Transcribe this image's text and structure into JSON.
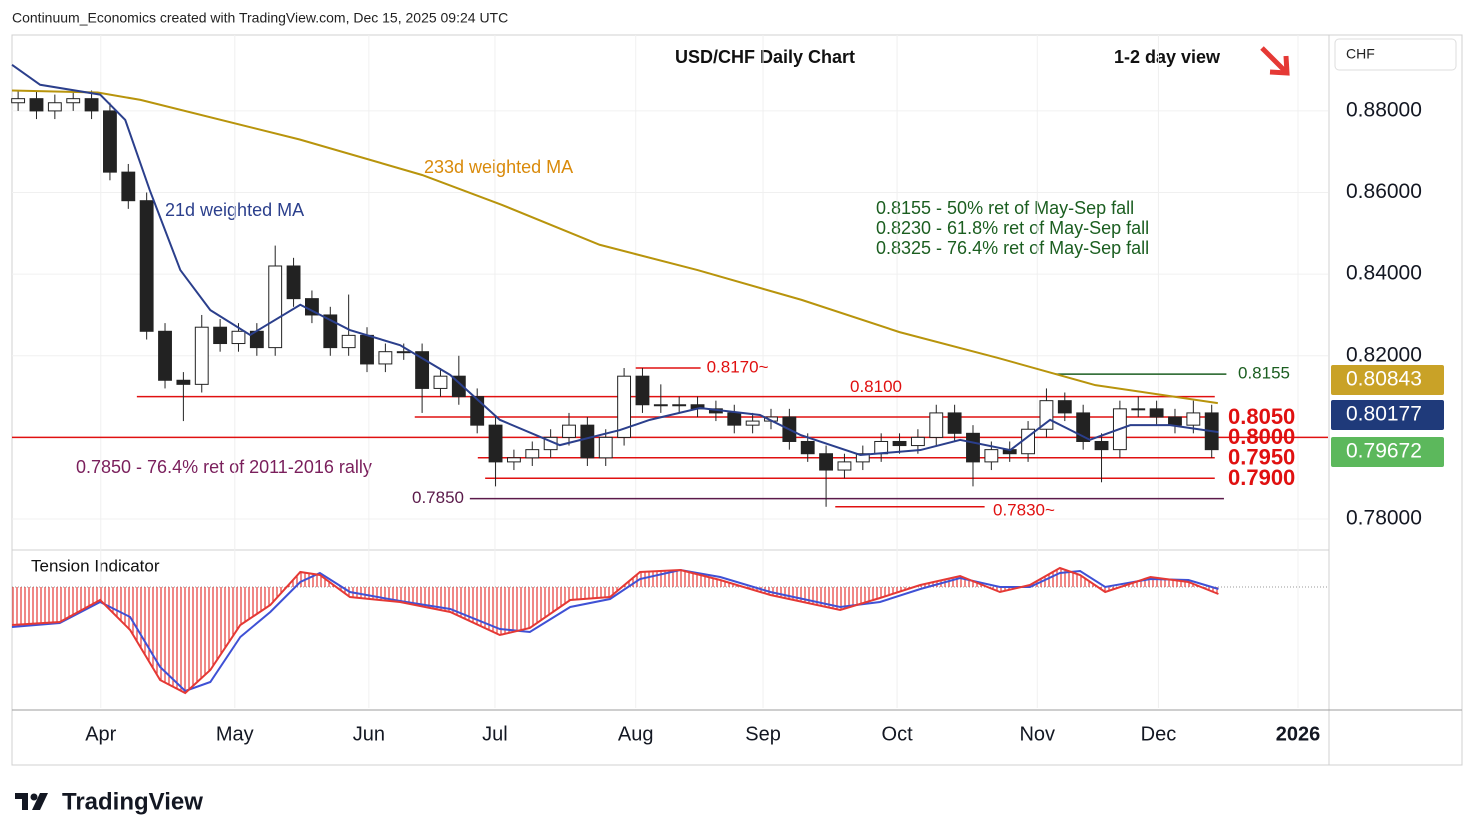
{
  "header": "Continuum_Economics created with TradingView.com, Dec 15, 2025 09:24 UTC",
  "brand": "TradingView",
  "chart_data": {
    "type": "candlestick",
    "title": "USD/CHF Daily Chart",
    "subtitle": "1-2 day view",
    "currency": "CHF",
    "xlim": [
      0,
      215
    ],
    "ylim": [
      0.7729,
      0.8986
    ],
    "xticks": [
      {
        "value": 14.5,
        "label": "Apr"
      },
      {
        "value": 36.4,
        "label": "May"
      },
      {
        "value": 58.3,
        "label": "Jun"
      },
      {
        "value": 78.9,
        "label": "Jul"
      },
      {
        "value": 101.9,
        "label": "Aug"
      },
      {
        "value": 122.7,
        "label": "Sep"
      },
      {
        "value": 144.6,
        "label": "Oct"
      },
      {
        "value": 167.5,
        "label": "Nov"
      },
      {
        "value": 187.3,
        "label": "Dec"
      },
      {
        "value": 210.1,
        "label": "2026"
      }
    ],
    "yticks": [
      {
        "value": 0.78,
        "label": "0.78000"
      },
      {
        "value": 0.82,
        "label": "0.82000"
      },
      {
        "value": 0.84,
        "label": "0.84000"
      },
      {
        "value": 0.86,
        "label": "0.86000"
      },
      {
        "value": 0.88,
        "label": "0.88000"
      }
    ],
    "candles": {
      "x": [
        1,
        4,
        7,
        10,
        13,
        16,
        19,
        22,
        25,
        28,
        31,
        34,
        37,
        40,
        43,
        46,
        49,
        52,
        55,
        58,
        61,
        64,
        67,
        70,
        73,
        76,
        79,
        82,
        85,
        88,
        91,
        94,
        97,
        100,
        103,
        106,
        109,
        112,
        115,
        118,
        121,
        124,
        127,
        130,
        133,
        136,
        139,
        142,
        145,
        148,
        151,
        154,
        157,
        160,
        163,
        166,
        169,
        172,
        175,
        178,
        181,
        184,
        187,
        190,
        193,
        196
      ],
      "open": [
        0.882,
        0.883,
        0.88,
        0.882,
        0.883,
        0.88,
        0.865,
        0.858,
        0.826,
        0.814,
        0.813,
        0.827,
        0.823,
        0.826,
        0.822,
        0.842,
        0.834,
        0.83,
        0.822,
        0.825,
        0.818,
        0.821,
        0.821,
        0.812,
        0.815,
        0.81,
        0.803,
        0.794,
        0.795,
        0.797,
        0.8,
        0.803,
        0.795,
        0.8,
        0.815,
        0.808,
        0.808,
        0.808,
        0.807,
        0.806,
        0.803,
        0.804,
        0.805,
        0.799,
        0.796,
        0.792,
        0.794,
        0.796,
        0.799,
        0.798,
        0.8,
        0.806,
        0.801,
        0.794,
        0.797,
        0.796,
        0.802,
        0.809,
        0.806,
        0.799,
        0.797,
        0.807,
        0.807,
        0.805,
        0.803,
        0.806
      ],
      "high": [
        0.885,
        0.885,
        0.884,
        0.885,
        0.885,
        0.882,
        0.867,
        0.86,
        0.828,
        0.816,
        0.83,
        0.829,
        0.828,
        0.828,
        0.847,
        0.844,
        0.836,
        0.832,
        0.835,
        0.827,
        0.823,
        0.823,
        0.823,
        0.817,
        0.82,
        0.812,
        0.805,
        0.797,
        0.799,
        0.802,
        0.806,
        0.805,
        0.802,
        0.817,
        0.817,
        0.813,
        0.81,
        0.81,
        0.809,
        0.808,
        0.806,
        0.807,
        0.807,
        0.801,
        0.798,
        0.796,
        0.798,
        0.801,
        0.801,
        0.802,
        0.808,
        0.808,
        0.803,
        0.799,
        0.799,
        0.804,
        0.812,
        0.811,
        0.808,
        0.801,
        0.809,
        0.81,
        0.809,
        0.807,
        0.809,
        0.808
      ],
      "low": [
        0.88,
        0.878,
        0.878,
        0.88,
        0.878,
        0.863,
        0.856,
        0.824,
        0.812,
        0.804,
        0.811,
        0.821,
        0.821,
        0.82,
        0.82,
        0.832,
        0.828,
        0.82,
        0.82,
        0.816,
        0.816,
        0.819,
        0.806,
        0.81,
        0.808,
        0.801,
        0.788,
        0.792,
        0.793,
        0.795,
        0.798,
        0.793,
        0.793,
        0.798,
        0.806,
        0.806,
        0.806,
        0.805,
        0.804,
        0.801,
        0.801,
        0.802,
        0.797,
        0.794,
        0.783,
        0.79,
        0.792,
        0.794,
        0.796,
        0.796,
        0.798,
        0.799,
        0.788,
        0.792,
        0.794,
        0.794,
        0.8,
        0.804,
        0.797,
        0.789,
        0.795,
        0.805,
        0.803,
        0.801,
        0.801,
        0.795
      ],
      "close": [
        0.883,
        0.88,
        0.882,
        0.883,
        0.88,
        0.865,
        0.858,
        0.826,
        0.814,
        0.813,
        0.827,
        0.823,
        0.826,
        0.822,
        0.842,
        0.834,
        0.83,
        0.822,
        0.825,
        0.818,
        0.821,
        0.821,
        0.812,
        0.815,
        0.81,
        0.803,
        0.794,
        0.795,
        0.797,
        0.8,
        0.803,
        0.795,
        0.8,
        0.815,
        0.808,
        0.808,
        0.808,
        0.807,
        0.806,
        0.803,
        0.804,
        0.805,
        0.799,
        0.796,
        0.792,
        0.794,
        0.796,
        0.799,
        0.798,
        0.8,
        0.806,
        0.801,
        0.794,
        0.797,
        0.796,
        0.802,
        0.809,
        0.806,
        0.799,
        0.797,
        0.807,
        0.807,
        0.805,
        0.803,
        0.806,
        0.797
      ]
    },
    "series": [
      {
        "name": "233d weighted MA",
        "color": "#b8940c",
        "x": [
          0,
          14,
          21,
          47,
          67,
          80,
          96,
          112,
          129,
          145,
          161,
          177,
          197
        ],
        "values": [
          0.885,
          0.8845,
          0.8827,
          0.873,
          0.8643,
          0.857,
          0.8472,
          0.841,
          0.8337,
          0.8258,
          0.8195,
          0.8128,
          0.8084
        ]
      },
      {
        "name": "21d weighted MA",
        "color": "#2b3f8c",
        "x": [
          0,
          4.6,
          14.4,
          18.5,
          22.5,
          27.5,
          32.4,
          38.9,
          47.1,
          55.2,
          63.4,
          71.6,
          79.7,
          89.5,
          99.3,
          104.2,
          112.4,
          122.2,
          128.8,
          138.6,
          148.4,
          154.9,
          163.1,
          169.6,
          176.1,
          182.7,
          189.2,
          197.1
        ],
        "values": [
          0.8913,
          0.8864,
          0.884,
          0.8778,
          0.8606,
          0.841,
          0.8312,
          0.8251,
          0.8325,
          0.8263,
          0.8226,
          0.8153,
          0.8043,
          0.7981,
          0.8018,
          0.8043,
          0.8072,
          0.8055,
          0.8006,
          0.7957,
          0.7969,
          0.7994,
          0.7969,
          0.8043,
          0.7994,
          0.803,
          0.803,
          0.8013
        ]
      }
    ],
    "levels": [
      {
        "value": 0.817,
        "label": "0.8170~",
        "color": "#e01010",
        "x_range": [
          101.9,
          112.5
        ]
      },
      {
        "value": 0.81,
        "label": "0.8100",
        "color": "#e01010",
        "x_range": [
          20.4,
          196.5
        ]
      },
      {
        "value": 0.805,
        "label": "0.8050",
        "color": "#e01010",
        "x_range": [
          65.8,
          196.5
        ]
      },
      {
        "value": 0.8,
        "label": "0.8000",
        "color": "#e01010",
        "x_range": [
          0,
          215
        ]
      },
      {
        "value": 0.795,
        "label": "0.7950",
        "color": "#e01010",
        "x_range": [
          76.1,
          196.5
        ]
      },
      {
        "value": 0.79,
        "label": "0.7900",
        "color": "#e01010",
        "x_range": [
          77.3,
          196.5
        ]
      },
      {
        "value": 0.785,
        "label": "0.7850",
        "color": "#5b1a4a",
        "x_range": [
          74.8,
          198
        ]
      },
      {
        "value": 0.783,
        "label": "0.7830~",
        "color": "#e01010",
        "x_range": [
          134.5,
          158.9
        ]
      },
      {
        "value": 0.8155,
        "label": "0.8155",
        "color": "#1b5e20",
        "x_range": [
          170.4,
          198.4
        ]
      }
    ],
    "price_tags": [
      {
        "value": 0.80843,
        "color": "#c9a227"
      },
      {
        "value": 0.80177,
        "color": "#1f3a7a"
      },
      {
        "value": 0.79672,
        "color": "#5cb85c"
      }
    ],
    "annotations": [
      "0.8155 - 50% ret of May-Sep fall",
      "0.8230 - 61.8% ret of May-Sep fall",
      "0.8325 - 76.4% ret of May-Sep fall",
      "0.7850 - 76.4% ret of 2011-2016 rally"
    ],
    "indicator": {
      "title": "Tension Indicator",
      "ylim": [
        -1.21,
        0.35
      ],
      "x": [
        0,
        7.8,
        14.4,
        19.3,
        24.2,
        28.3,
        32.4,
        37.3,
        42.2,
        47.1,
        50.3,
        55.2,
        63.4,
        71.6,
        79.7,
        84.6,
        91.2,
        97.7,
        102.6,
        109.2,
        115.7,
        123.9,
        135.3,
        141.8,
        148.4,
        154.9,
        161.4,
        166.3,
        171.2,
        174.5,
        178.6,
        186,
        192.2,
        197.1
      ],
      "series": [
        {
          "color": "#e53935",
          "values": [
            -0.38,
            -0.35,
            -0.13,
            -0.43,
            -0.93,
            -1.06,
            -0.83,
            -0.38,
            -0.18,
            0.15,
            0.12,
            -0.1,
            -0.15,
            -0.25,
            -0.48,
            -0.41,
            -0.13,
            -0.1,
            0.15,
            0.17,
            0.07,
            -0.08,
            -0.23,
            -0.11,
            0.02,
            0.11,
            -0.05,
            0.02,
            0.19,
            0.12,
            -0.05,
            0.1,
            0.05,
            -0.07
          ]
        },
        {
          "color": "#3f51d5",
          "values": [
            -0.4,
            -0.36,
            -0.15,
            -0.3,
            -0.8,
            -1.04,
            -0.95,
            -0.5,
            -0.25,
            0.05,
            0.14,
            -0.05,
            -0.14,
            -0.22,
            -0.42,
            -0.45,
            -0.2,
            -0.12,
            0.08,
            0.17,
            0.1,
            -0.05,
            -0.2,
            -0.15,
            -0.02,
            0.09,
            0.0,
            0.0,
            0.14,
            0.16,
            0.0,
            0.08,
            0.07,
            -0.02
          ]
        }
      ]
    }
  }
}
